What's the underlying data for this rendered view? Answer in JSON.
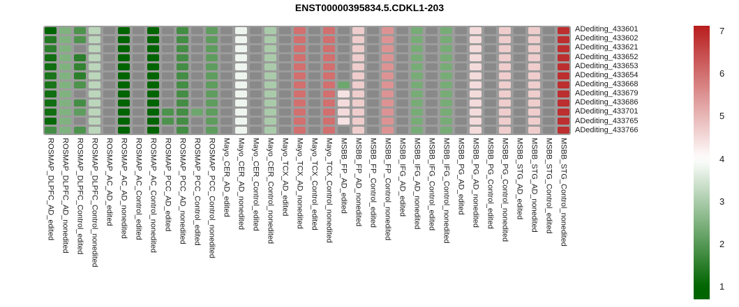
{
  "title": "ENST00000395834.5.CDKL1-203",
  "chart_data": {
    "type": "heatmap",
    "title": "ENST00000395834.5.CDKL1-203",
    "rows": [
      "ADediting_433601",
      "ADediting_433602",
      "ADediting_433621",
      "ADediting_433652",
      "ADediting_433653",
      "ADediting_433654",
      "ADediting_433668",
      "ADediting_433679",
      "ADediting_433686",
      "ADediting_433701",
      "ADediting_433765",
      "ADediting_433766"
    ],
    "columns": [
      "ROSMAP_DLPFC_AD_edited",
      "ROSMAP_DLPFC_AD_nonedited",
      "ROSMAP_DLPFC_Control_edited",
      "ROSMAP_DLPFC_Control_nonedited",
      "ROSMAP_AC_AD_edited",
      "ROSMAP_AC_AD_nonedited",
      "ROSMAP_AC_Control_edited",
      "ROSMAP_AC_Control_nonedited",
      "ROSMAP_PCC_AD_edited",
      "ROSMAP_PCC_AD_nonedited",
      "ROSMAP_PCC_Control_edited",
      "ROSMAP_PCC_Control_nonedited",
      "Mayo_CER_AD_edited",
      "Mayo_CER_AD_nonedited",
      "Mayo_CER_Control_edited",
      "Mayo_CER_Control_nonedited",
      "Mayo_TCX_AD_edited",
      "Mayo_TCX_AD_nonedited",
      "Mayo_TCX_Control_edited",
      "Mayo_TCX_Control_nonedited",
      "MSBB_FP_AD_edited",
      "MSBB_FP_AD_nonedited",
      "MSBB_FP_Control_edited",
      "MSBB_FP_Control_nonedited",
      "MSBB_IFG_AD_edited",
      "MSBB_IFG_AD_nonedited",
      "MSBB_IFG_Control_edited",
      "MSBB_IFG_Control_nonedited",
      "MSBB_PG_AD_edited",
      "MSBB_PG_AD_nonedited",
      "MSBB_PG_Control_edited",
      "MSBB_PG_Control_nonedited",
      "MSBB_STG_AD_edited",
      "MSBB_STG_AD_nonedited",
      "MSBB_STG_Control_edited",
      "MSBB_STG_Control_nonedited"
    ],
    "values": [
      [
        1.0,
        2.5,
        1.9,
        3.2,
        null,
        1.0,
        null,
        1.0,
        null,
        1.8,
        null,
        2.1,
        null,
        3.8,
        null,
        3.0,
        null,
        6.0,
        null,
        6.0,
        null,
        4.7,
        null,
        5.5,
        null,
        2.4,
        null,
        2.4,
        null,
        4.5,
        null,
        4.7,
        null,
        4.7,
        null,
        6.9
      ],
      [
        1.4,
        2.5,
        1.9,
        3.2,
        null,
        1.0,
        null,
        1.0,
        null,
        1.8,
        null,
        2.1,
        null,
        3.8,
        null,
        3.0,
        null,
        6.0,
        null,
        6.0,
        null,
        4.7,
        null,
        5.5,
        null,
        2.4,
        null,
        2.4,
        null,
        4.5,
        null,
        4.7,
        null,
        4.7,
        null,
        6.9
      ],
      [
        1.5,
        2.5,
        null,
        3.2,
        null,
        1.0,
        null,
        1.0,
        null,
        1.8,
        null,
        2.1,
        null,
        3.8,
        null,
        3.0,
        null,
        6.0,
        null,
        6.0,
        null,
        4.7,
        null,
        5.5,
        null,
        2.4,
        null,
        2.4,
        null,
        4.5,
        null,
        4.7,
        null,
        4.7,
        null,
        6.9
      ],
      [
        1.2,
        2.5,
        1.5,
        3.2,
        null,
        1.0,
        null,
        1.0,
        null,
        1.8,
        null,
        2.1,
        null,
        3.8,
        null,
        3.0,
        null,
        6.0,
        null,
        6.0,
        null,
        4.7,
        null,
        5.5,
        null,
        2.4,
        null,
        2.4,
        null,
        4.5,
        null,
        4.7,
        null,
        4.7,
        null,
        6.9
      ],
      [
        1.2,
        2.5,
        1.6,
        3.2,
        null,
        1.0,
        null,
        1.0,
        null,
        1.8,
        null,
        2.1,
        null,
        3.8,
        null,
        3.0,
        null,
        6.0,
        null,
        6.0,
        null,
        4.7,
        null,
        5.5,
        null,
        2.4,
        null,
        2.4,
        null,
        4.5,
        null,
        4.7,
        null,
        4.7,
        null,
        6.9
      ],
      [
        1.3,
        2.5,
        1.5,
        3.2,
        null,
        1.0,
        null,
        1.0,
        null,
        1.8,
        null,
        2.1,
        null,
        3.8,
        null,
        3.0,
        null,
        6.0,
        null,
        6.0,
        null,
        4.7,
        null,
        5.5,
        null,
        2.4,
        null,
        2.4,
        null,
        4.5,
        null,
        4.7,
        null,
        4.7,
        null,
        6.9
      ],
      [
        1.3,
        2.5,
        1.9,
        3.2,
        null,
        1.0,
        null,
        1.0,
        null,
        1.8,
        null,
        2.1,
        null,
        3.8,
        null,
        3.0,
        null,
        6.0,
        null,
        6.0,
        2.3,
        4.7,
        null,
        5.5,
        null,
        2.4,
        null,
        2.4,
        null,
        4.5,
        null,
        4.7,
        null,
        4.7,
        null,
        6.9
      ],
      [
        1.2,
        2.5,
        null,
        3.2,
        null,
        1.0,
        null,
        1.0,
        null,
        1.8,
        null,
        2.1,
        null,
        3.8,
        null,
        3.0,
        null,
        6.0,
        null,
        6.0,
        4.4,
        4.7,
        null,
        5.5,
        null,
        2.4,
        null,
        2.4,
        null,
        4.5,
        null,
        4.7,
        null,
        4.7,
        null,
        6.9
      ],
      [
        1.2,
        2.5,
        1.8,
        3.2,
        null,
        1.0,
        null,
        1.0,
        null,
        1.8,
        null,
        2.1,
        null,
        3.8,
        null,
        3.0,
        null,
        6.0,
        null,
        6.0,
        4.5,
        4.7,
        null,
        5.5,
        null,
        2.4,
        null,
        2.4,
        null,
        4.5,
        null,
        4.7,
        null,
        4.7,
        null,
        6.9
      ],
      [
        1.2,
        2.5,
        2.1,
        3.2,
        null,
        1.0,
        null,
        1.0,
        1.9,
        1.8,
        2.3,
        2.1,
        null,
        3.8,
        null,
        3.0,
        null,
        6.0,
        null,
        6.0,
        4.5,
        4.7,
        null,
        5.5,
        null,
        2.4,
        null,
        2.4,
        null,
        4.5,
        null,
        4.7,
        null,
        4.7,
        null,
        6.9
      ],
      [
        1.1,
        2.5,
        null,
        3.2,
        null,
        1.0,
        null,
        1.0,
        1.9,
        1.8,
        null,
        2.1,
        null,
        3.8,
        null,
        3.0,
        null,
        6.0,
        null,
        6.0,
        4.4,
        4.7,
        null,
        5.5,
        null,
        2.4,
        null,
        2.4,
        null,
        4.5,
        null,
        4.7,
        null,
        4.7,
        null,
        6.9
      ],
      [
        1.8,
        2.5,
        1.9,
        3.2,
        null,
        1.0,
        null,
        1.0,
        null,
        1.8,
        null,
        2.1,
        null,
        3.8,
        null,
        3.0,
        null,
        6.0,
        null,
        6.0,
        null,
        4.7,
        null,
        5.5,
        null,
        2.4,
        null,
        2.4,
        null,
        4.5,
        null,
        4.7,
        null,
        4.7,
        null,
        6.9
      ]
    ],
    "colorbar": {
      "ticks": [
        "7",
        "6",
        "5",
        "4",
        "3",
        "2",
        "1"
      ],
      "tick_values": [
        7,
        6,
        5,
        4,
        3,
        2,
        1
      ],
      "bar_top_value": 7.13,
      "bar_bottom_value": 0.71,
      "white_at": 4,
      "position": "right"
    },
    "colors": {
      "low_green": "#006400",
      "mid_white": "#ffffff",
      "high_red": "#b41111",
      "na_cell": "#898989",
      "grid_background": "#9c9c9c"
    },
    "value_range": [
      1,
      7
    ],
    "na_meaning": "gray cell = no value",
    "legend_position": "right colorbar",
    "grid": "gray lattice between cells"
  }
}
